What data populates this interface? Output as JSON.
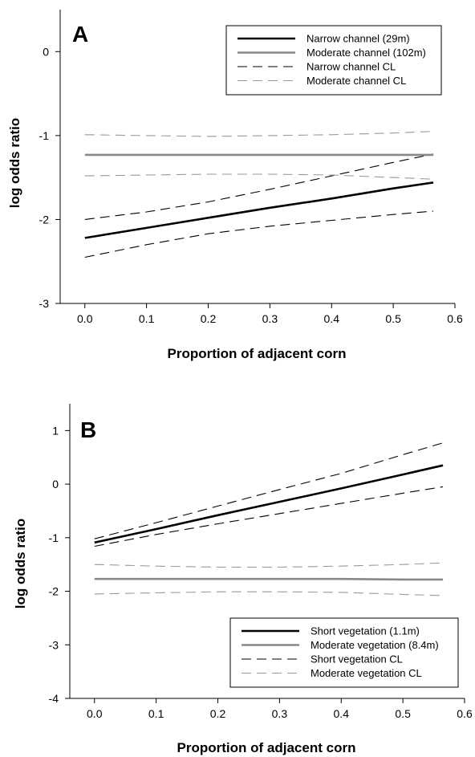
{
  "chart_data": [
    {
      "type": "line",
      "panel_label": "A",
      "xlabel": "Proportion of adjacent corn",
      "ylabel": "log odds ratio",
      "xlim": [
        -0.04,
        0.6
      ],
      "ylim": [
        -3,
        0.5
      ],
      "xticks": [
        "0.0",
        "0.1",
        "0.2",
        "0.3",
        "0.4",
        "0.5",
        "0.6"
      ],
      "xtick_values": [
        0,
        0.1,
        0.2,
        0.3,
        0.4,
        0.5,
        0.6
      ],
      "yticks": [
        "0",
        "-1",
        "-2",
        "-3"
      ],
      "ytick_values": [
        0,
        -1,
        -2,
        -3
      ],
      "grid": false,
      "legend_position": "top-right",
      "x": [
        0,
        0.1,
        0.2,
        0.3,
        0.4,
        0.5,
        0.565
      ],
      "series": [
        {
          "name": "Narrow channel (29m)",
          "style": "solid-thick",
          "color": "#000000",
          "values": [
            -2.22,
            -2.1,
            -1.98,
            -1.86,
            -1.75,
            -1.63,
            -1.56
          ]
        },
        {
          "name": "Moderate channel (102m)",
          "style": "solid-thick",
          "color": "#888888",
          "values": [
            -1.23,
            -1.23,
            -1.23,
            -1.23,
            -1.23,
            -1.23,
            -1.23
          ]
        },
        {
          "name": "Narrow channel CL",
          "style": "dashed",
          "color": "#000000",
          "values": [
            -2.0,
            -1.91,
            -1.79,
            -1.64,
            -1.48,
            -1.32,
            -1.22
          ]
        },
        {
          "name": "Narrow channel CL",
          "style": "dashed",
          "color": "#000000",
          "in_legend": false,
          "values": [
            -2.45,
            -2.3,
            -2.17,
            -2.08,
            -2.01,
            -1.94,
            -1.9
          ]
        },
        {
          "name": "Moderate channel CL",
          "style": "dashed",
          "color": "#999999",
          "values": [
            -0.99,
            -1.0,
            -1.01,
            -1.0,
            -0.99,
            -0.97,
            -0.95
          ]
        },
        {
          "name": "Moderate channel CL",
          "style": "dashed",
          "color": "#999999",
          "in_legend": false,
          "values": [
            -1.48,
            -1.47,
            -1.46,
            -1.46,
            -1.47,
            -1.5,
            -1.52
          ]
        }
      ]
    },
    {
      "type": "line",
      "panel_label": "B",
      "xlabel": "Proportion of adjacent corn",
      "ylabel": "log odds ratio",
      "xlim": [
        -0.04,
        0.6
      ],
      "ylim": [
        -4,
        1.5
      ],
      "xticks": [
        "0.0",
        "0.1",
        "0.2",
        "0.3",
        "0.4",
        "0.5",
        "0.6"
      ],
      "xtick_values": [
        0,
        0.1,
        0.2,
        0.3,
        0.4,
        0.5,
        0.6
      ],
      "yticks": [
        "1",
        "0",
        "-1",
        "-2",
        "-3",
        "-4"
      ],
      "ytick_values": [
        1,
        0,
        -1,
        -2,
        -3,
        -4
      ],
      "grid": false,
      "legend_position": "bottom-right",
      "x": [
        0,
        0.1,
        0.2,
        0.3,
        0.4,
        0.5,
        0.565
      ],
      "series": [
        {
          "name": "Short vegetation (1.1m)",
          "style": "solid-thick",
          "color": "#000000",
          "values": [
            -1.09,
            -0.84,
            -0.58,
            -0.33,
            -0.08,
            0.18,
            0.35
          ]
        },
        {
          "name": "Moderate vegetation (8.4m)",
          "style": "solid-thick",
          "color": "#888888",
          "values": [
            -1.77,
            -1.77,
            -1.77,
            -1.77,
            -1.77,
            -1.78,
            -1.78
          ]
        },
        {
          "name": "Short vegetation CL",
          "style": "dashed",
          "color": "#000000",
          "values": [
            -1.02,
            -0.72,
            -0.41,
            -0.1,
            0.2,
            0.55,
            0.77
          ]
        },
        {
          "name": "Short vegetation CL",
          "style": "dashed",
          "color": "#000000",
          "in_legend": false,
          "values": [
            -1.16,
            -0.94,
            -0.74,
            -0.55,
            -0.36,
            -0.17,
            -0.05
          ]
        },
        {
          "name": "Moderate vegetation CL",
          "style": "dashed",
          "color": "#999999",
          "values": [
            -1.5,
            -1.53,
            -1.55,
            -1.55,
            -1.53,
            -1.5,
            -1.47
          ]
        },
        {
          "name": "Moderate vegetation CL",
          "style": "dashed",
          "color": "#999999",
          "in_legend": false,
          "values": [
            -2.05,
            -2.03,
            -2.01,
            -2.01,
            -2.02,
            -2.06,
            -2.08
          ]
        }
      ]
    }
  ]
}
